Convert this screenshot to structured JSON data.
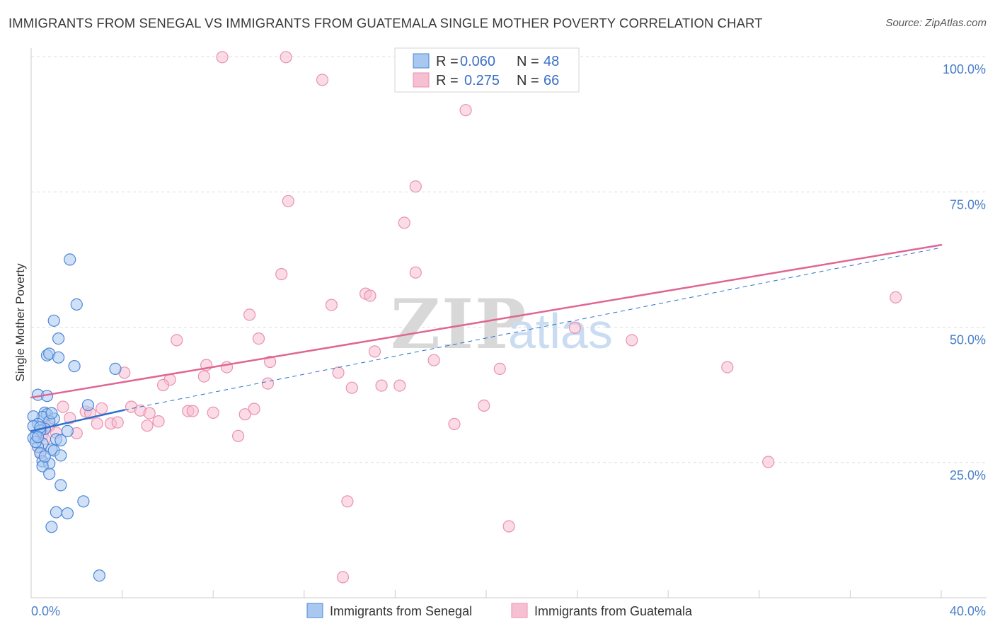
{
  "title": "IMMIGRANTS FROM SENEGAL VS IMMIGRANTS FROM GUATEMALA SINGLE MOTHER POVERTY CORRELATION CHART",
  "source": "Source: ZipAtlas.com",
  "watermark": {
    "zip": "ZIP",
    "atlas": "atlas"
  },
  "colors": {
    "senegal_fill": "#a9c8f0",
    "senegal_stroke": "#4a86d8",
    "senegal_line": "#2b6fd0",
    "guatemala_fill": "#f7c0d2",
    "guatemala_stroke": "#e891ae",
    "guatemala_line": "#e06593",
    "tick_text": "#4a7fc8",
    "grid": "#dddddd"
  },
  "chart_data": {
    "type": "scatter",
    "title": "IMMIGRANTS FROM SENEGAL VS IMMIGRANTS FROM GUATEMALA SINGLE MOTHER POVERTY CORRELATION CHART",
    "xlabel": "",
    "ylabel": "Single Mother Poverty",
    "xlim": [
      0,
      40
    ],
    "ylim": [
      0,
      100
    ],
    "x_tick_labels": [
      {
        "value": 0,
        "label": "0.0%"
      },
      {
        "value": 40,
        "label": "40.0%"
      }
    ],
    "y_tick_labels": [
      {
        "value": 25,
        "label": "25.0%"
      },
      {
        "value": 50,
        "label": "50.0%"
      },
      {
        "value": 75,
        "label": "75.0%"
      },
      {
        "value": 100,
        "label": "100.0%"
      }
    ],
    "legend": [
      {
        "series": "senegal",
        "r_label": "R =",
        "r_value": "0.060",
        "n_label": "N =",
        "n_value": "48"
      },
      {
        "series": "guatemala",
        "r_label": "R =",
        "r_value": "0.275",
        "n_label": "N =",
        "n_value": "66"
      }
    ],
    "series": [
      {
        "key": "senegal",
        "name": "Immigrants from Senegal",
        "trend": {
          "x0": 0,
          "y0": 30.8,
          "x1": 4.1,
          "y1": 34.7,
          "dashed_to_x": 40,
          "dashed_to_y": 64.7
        },
        "points": [
          [
            1.7,
            62.5
          ],
          [
            2.0,
            54.2
          ],
          [
            1.0,
            51.2
          ],
          [
            1.2,
            47.9
          ],
          [
            0.7,
            44.8
          ],
          [
            0.8,
            45.1
          ],
          [
            1.2,
            44.4
          ],
          [
            1.9,
            42.8
          ],
          [
            3.7,
            42.3
          ],
          [
            0.3,
            37.5
          ],
          [
            0.7,
            37.3
          ],
          [
            2.5,
            35.6
          ],
          [
            0.6,
            34.2
          ],
          [
            0.7,
            33.9
          ],
          [
            0.5,
            33.4
          ],
          [
            0.1,
            33.5
          ],
          [
            1.0,
            33.1
          ],
          [
            0.8,
            32.6
          ],
          [
            0.3,
            32.1
          ],
          [
            0.1,
            31.7
          ],
          [
            0.6,
            31.2
          ],
          [
            0.4,
            30.9
          ],
          [
            1.6,
            30.8
          ],
          [
            0.2,
            30.0
          ],
          [
            0.1,
            29.5
          ],
          [
            1.1,
            29.3
          ],
          [
            1.3,
            29.1
          ],
          [
            0.5,
            28.5
          ],
          [
            0.3,
            27.9
          ],
          [
            0.9,
            27.4
          ],
          [
            1.0,
            27.2
          ],
          [
            0.4,
            26.7
          ],
          [
            1.3,
            26.3
          ],
          [
            0.5,
            25.2
          ],
          [
            0.8,
            24.8
          ],
          [
            0.5,
            24.3
          ],
          [
            0.8,
            22.9
          ],
          [
            1.3,
            20.8
          ],
          [
            2.3,
            17.8
          ],
          [
            1.1,
            15.8
          ],
          [
            1.6,
            15.6
          ],
          [
            0.9,
            13.1
          ],
          [
            3.0,
            4.1
          ],
          [
            0.2,
            28.8
          ],
          [
            0.4,
            31.5
          ],
          [
            0.9,
            34.1
          ],
          [
            0.6,
            26.1
          ],
          [
            0.3,
            29.7
          ]
        ]
      },
      {
        "key": "guatemala",
        "name": "Immigrants from Guatemala",
        "trend": {
          "x0": 0,
          "y0": 37.0,
          "x1": 40,
          "y1": 65.2
        },
        "points": [
          [
            8.4,
            99.9
          ],
          [
            11.2,
            99.9
          ],
          [
            12.8,
            95.7
          ],
          [
            19.1,
            90.1
          ],
          [
            16.9,
            76.0
          ],
          [
            11.3,
            73.3
          ],
          [
            16.4,
            69.3
          ],
          [
            16.9,
            60.1
          ],
          [
            11.0,
            59.8
          ],
          [
            14.7,
            56.2
          ],
          [
            14.9,
            55.8
          ],
          [
            38.0,
            55.5
          ],
          [
            13.2,
            54.1
          ],
          [
            9.6,
            52.3
          ],
          [
            23.9,
            49.9
          ],
          [
            26.4,
            47.6
          ],
          [
            6.4,
            47.6
          ],
          [
            10.0,
            47.9
          ],
          [
            15.1,
            45.5
          ],
          [
            17.7,
            43.9
          ],
          [
            10.5,
            43.6
          ],
          [
            7.7,
            43.0
          ],
          [
            8.6,
            42.6
          ],
          [
            20.6,
            42.3
          ],
          [
            30.6,
            42.6
          ],
          [
            13.5,
            41.6
          ],
          [
            4.1,
            41.6
          ],
          [
            7.6,
            40.9
          ],
          [
            6.1,
            40.3
          ],
          [
            5.8,
            39.3
          ],
          [
            10.4,
            39.6
          ],
          [
            14.1,
            38.8
          ],
          [
            15.4,
            39.2
          ],
          [
            16.2,
            39.2
          ],
          [
            19.9,
            35.5
          ],
          [
            2.4,
            34.4
          ],
          [
            1.4,
            35.3
          ],
          [
            3.1,
            35.0
          ],
          [
            4.4,
            35.3
          ],
          [
            4.8,
            34.6
          ],
          [
            6.9,
            34.5
          ],
          [
            7.1,
            34.5
          ],
          [
            8.0,
            34.2
          ],
          [
            9.8,
            34.9
          ],
          [
            2.6,
            34.1
          ],
          [
            5.2,
            34.1
          ],
          [
            9.4,
            33.9
          ],
          [
            2.9,
            32.2
          ],
          [
            3.5,
            32.2
          ],
          [
            3.8,
            32.4
          ],
          [
            5.6,
            32.6
          ],
          [
            1.7,
            33.2
          ],
          [
            18.6,
            32.1
          ],
          [
            5.1,
            31.8
          ],
          [
            0.8,
            31.7
          ],
          [
            0.6,
            31.4
          ],
          [
            1.1,
            30.5
          ],
          [
            2.0,
            30.4
          ],
          [
            0.5,
            30.1
          ],
          [
            9.1,
            29.9
          ],
          [
            0.6,
            29.3
          ],
          [
            0.4,
            26.9
          ],
          [
            32.4,
            25.1
          ],
          [
            13.9,
            17.8
          ],
          [
            21.0,
            13.2
          ],
          [
            13.7,
            3.8
          ]
        ]
      }
    ]
  }
}
